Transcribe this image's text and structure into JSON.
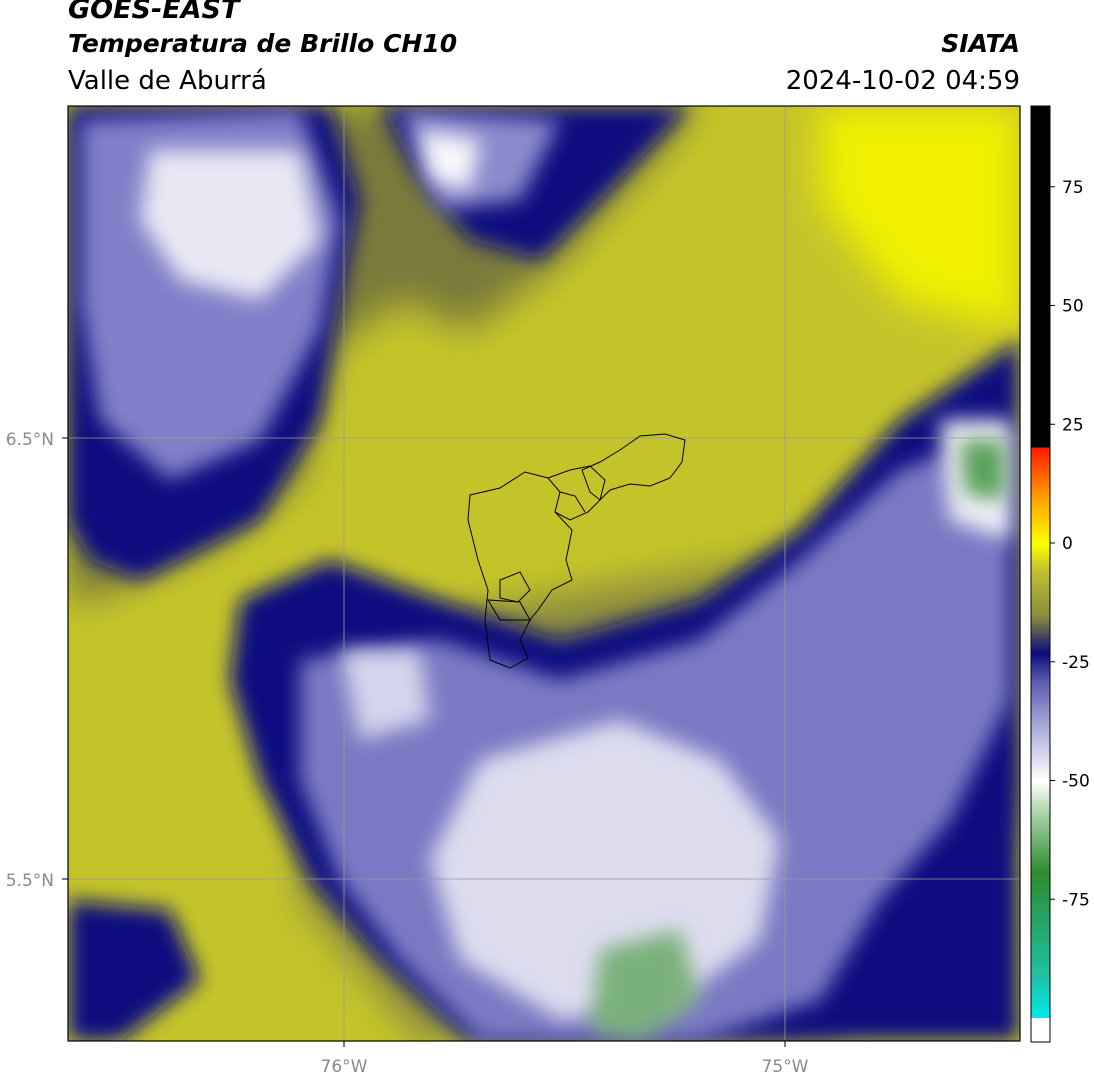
{
  "header": {
    "satellite": "GOES-EAST",
    "product": "Temperatura de Brillo CH10",
    "region": "Valle de Aburrá",
    "organization": "SIATA",
    "datetime": "2024-10-02 04:59"
  },
  "map": {
    "lat_labels": [
      "6.5°N",
      "5.5°N"
    ],
    "lon_labels": [
      "76°W",
      "75°W"
    ],
    "grid_color": "#9a9a9a"
  },
  "colorbar": {
    "tick_labels": [
      "75",
      "50",
      "25",
      "0",
      "-25",
      "-50",
      "-75"
    ],
    "ticks": [
      75,
      50,
      25,
      0,
      -25,
      -50,
      -75
    ],
    "range": [
      -100,
      92
    ],
    "colors": {
      "black": "#000000",
      "red": "#ff1a00",
      "orange": "#ff8c00",
      "yellow": "#ffff00",
      "olive": "#a6a630",
      "navy": "#0a0a80",
      "lavender": "#b8b8e0",
      "white": "#ffffff",
      "green": "#2e8b2e",
      "cyan": "#00e6e6"
    }
  }
}
